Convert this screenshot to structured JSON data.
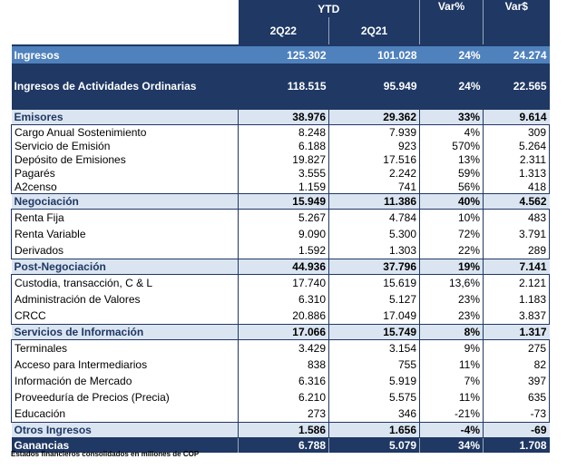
{
  "header": {
    "ytd": "YTD",
    "col_2q22": "2Q22",
    "col_2q21": "2Q21",
    "col_varpct": "Var%",
    "col_vardollar": "Var$"
  },
  "rows": {
    "ingresos": {
      "label": "Ingresos",
      "v22": "125.302",
      "v21": "101.028",
      "pct": "24%",
      "abs": "24.274"
    },
    "ordinarias": {
      "label": "Ingresos de Actividades Ordinarias",
      "v22": "118.515",
      "v21": "95.949",
      "pct": "24%",
      "abs": "22.565"
    },
    "emisores": {
      "label": "Emisores",
      "v22": "38.976",
      "v21": "29.362",
      "pct": "33%",
      "abs": "9.614"
    },
    "cargo": {
      "label": "Cargo Anual Sostenimiento",
      "v22": "8.248",
      "v21": "7.939",
      "pct": "4%",
      "abs": "309"
    },
    "servicio_emision": {
      "label": "Servicio de Emisión",
      "v22": "6.188",
      "v21": "923",
      "pct": "570%",
      "abs": "5.264"
    },
    "deposito": {
      "label": "Depósito de Emisiones",
      "v22": "19.827",
      "v21": "17.516",
      "pct": "13%",
      "abs": "2.311"
    },
    "pagares": {
      "label": "Pagarés",
      "v22": "3.555",
      "v21": "2.242",
      "pct": "59%",
      "abs": "1.313"
    },
    "a2censo": {
      "label": "A2censo",
      "v22": "1.159",
      "v21": "741",
      "pct": "56%",
      "abs": "418"
    },
    "negociacion": {
      "label": "Negociación",
      "v22": "15.949",
      "v21": "11.386",
      "pct": "40%",
      "abs": "4.562"
    },
    "renta_fija": {
      "label": "Renta Fija",
      "v22": "5.267",
      "v21": "4.784",
      "pct": "10%",
      "abs": "483"
    },
    "renta_variable": {
      "label": "Renta Variable",
      "v22": "9.090",
      "v21": "5.300",
      "pct": "72%",
      "abs": "3.791"
    },
    "derivados": {
      "label": "Derivados",
      "v22": "1.592",
      "v21": "1.303",
      "pct": "22%",
      "abs": "289"
    },
    "post_negociacion": {
      "label": "Post-Negociación",
      "v22": "44.936",
      "v21": "37.796",
      "pct": "19%",
      "abs": "7.141"
    },
    "custodia": {
      "label": "Custodia, transacción, C & L",
      "v22": "17.740",
      "v21": "15.619",
      "pct": "13,6%",
      "abs": "2.121"
    },
    "administracion": {
      "label": "Administración de Valores",
      "v22": "6.310",
      "v21": "5.127",
      "pct": "23%",
      "abs": "1.183"
    },
    "crcc": {
      "label": "CRCC",
      "v22": "20.886",
      "v21": "17.049",
      "pct": "23%",
      "abs": "3.837"
    },
    "servicios_info": {
      "label": "Servicios de Información",
      "v22": "17.066",
      "v21": "15.749",
      "pct": "8%",
      "abs": "1.317"
    },
    "terminales": {
      "label": "Terminales",
      "v22": "3.429",
      "v21": "3.154",
      "pct": "9%",
      "abs": "275"
    },
    "acceso": {
      "label": "Acceso para Intermediarios",
      "v22": "838",
      "v21": "755",
      "pct": "11%",
      "abs": "82"
    },
    "info_mercado": {
      "label": "Información de Mercado",
      "v22": "6.316",
      "v21": "5.919",
      "pct": "7%",
      "abs": "397"
    },
    "proveeduria": {
      "label": "Proveeduría de Precios (Precia)",
      "v22": "6.210",
      "v21": "5.575",
      "pct": "11%",
      "abs": "635"
    },
    "educacion": {
      "label": "Educación",
      "v22": "273",
      "v21": "346",
      "pct": "-21%",
      "abs": "-73"
    },
    "otros": {
      "label": "Otros Ingresos",
      "v22": "1.586",
      "v21": "1.656",
      "pct": "-4%",
      "abs": "-69"
    },
    "ganancias": {
      "label": "Ganancias",
      "v22": "6.788",
      "v21": "5.079",
      "pct": "34%",
      "abs": "1.708"
    }
  },
  "footnote": "Estados financieros consolidados en millones de COP"
}
